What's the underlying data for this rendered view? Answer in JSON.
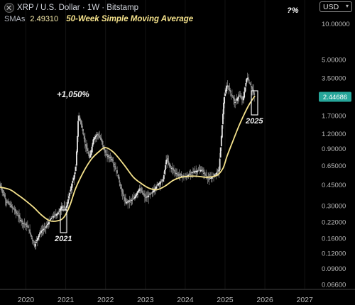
{
  "header": {
    "symbol": "XRP / U.S. Dollar · 1W · Bitstamp",
    "sma_label": "SMAs",
    "sma_value": "2.49310",
    "sma_name": "50-Week Simple Moving Average",
    "question": "?%",
    "currency": "USD"
  },
  "annotations": {
    "gain": "+1,050%",
    "box_2021": "2021",
    "box_2025": "2025"
  },
  "colors": {
    "background": "#000000",
    "sma": "#f5e28c",
    "candle": "#c8c8c8",
    "price_badge": "#26a69a"
  },
  "chart_data": {
    "type": "line",
    "scale": "log",
    "ylim": [
      0.06,
      12
    ],
    "xlim": [
      2019.35,
      2027.3
    ],
    "y_ticks": [
      "10.00000",
      "5.00000",
      "3.50000",
      "2.44686",
      "1.70000",
      "1.20000",
      "0.90000",
      "0.65000",
      "0.45000",
      "0.30000",
      "0.22000",
      "0.16000",
      "0.12000",
      "0.09000",
      "0.06600"
    ],
    "y_tick_values": [
      10.0,
      5.0,
      3.5,
      2.44686,
      1.7,
      1.2,
      0.9,
      0.65,
      0.45,
      0.3,
      0.22,
      0.16,
      0.12,
      0.09,
      0.066
    ],
    "x_ticks": [
      "2020",
      "2021",
      "2022",
      "2023",
      "2024",
      "2025",
      "2026",
      "2027"
    ],
    "x_tick_values": [
      2020,
      2021,
      2022,
      2023,
      2024,
      2025,
      2026,
      2027
    ],
    "current_price": "2.44686",
    "series": [
      {
        "name": "50-Week Simple Moving Average",
        "x": [
          2019.35,
          2019.6,
          2019.8,
          2020.0,
          2020.2,
          2020.4,
          2020.6,
          2020.8,
          2020.95,
          2021.1,
          2021.25,
          2021.45,
          2021.65,
          2021.85,
          2022.0,
          2022.2,
          2022.45,
          2022.7,
          2022.9,
          2023.1,
          2023.3,
          2023.5,
          2023.7,
          2023.9,
          2024.1,
          2024.3,
          2024.55,
          2024.8,
          2024.95,
          2025.05,
          2025.2,
          2025.35,
          2025.5,
          2025.62,
          2025.75
        ],
        "values": [
          0.43,
          0.41,
          0.37,
          0.33,
          0.29,
          0.25,
          0.225,
          0.225,
          0.24,
          0.3,
          0.42,
          0.58,
          0.74,
          0.86,
          0.92,
          0.84,
          0.67,
          0.52,
          0.46,
          0.42,
          0.41,
          0.44,
          0.49,
          0.52,
          0.53,
          0.53,
          0.52,
          0.54,
          0.62,
          0.78,
          1.05,
          1.4,
          1.8,
          2.15,
          2.49
        ]
      },
      {
        "name": "XRP / U.S. Dollar",
        "x": [
          2019.35,
          2019.5,
          2019.7,
          2019.9,
          2020.05,
          2020.15,
          2020.22,
          2020.35,
          2020.5,
          2020.65,
          2020.8,
          2020.9,
          2021.0,
          2021.15,
          2021.25,
          2021.32,
          2021.4,
          2021.5,
          2021.6,
          2021.7,
          2021.8,
          2021.9,
          2022.0,
          2022.15,
          2022.3,
          2022.4,
          2022.5,
          2022.7,
          2022.85,
          2023.0,
          2023.15,
          2023.3,
          2023.45,
          2023.53,
          2023.6,
          2023.8,
          2024.0,
          2024.2,
          2024.4,
          2024.6,
          2024.75,
          2024.85,
          2024.9,
          2024.97,
          2025.05,
          2025.15,
          2025.25,
          2025.35,
          2025.45,
          2025.55,
          2025.65,
          2025.75
        ],
        "values": [
          0.45,
          0.33,
          0.28,
          0.22,
          0.2,
          0.16,
          0.14,
          0.18,
          0.2,
          0.24,
          0.26,
          0.3,
          0.28,
          0.45,
          0.6,
          1.75,
          1.4,
          0.95,
          0.75,
          1.1,
          1.2,
          1.05,
          0.8,
          0.75,
          0.55,
          0.4,
          0.32,
          0.34,
          0.42,
          0.35,
          0.38,
          0.45,
          0.5,
          0.75,
          0.65,
          0.55,
          0.52,
          0.58,
          0.6,
          0.5,
          0.55,
          0.6,
          1.05,
          2.3,
          3.1,
          2.6,
          2.2,
          2.5,
          2.3,
          3.6,
          3.0,
          2.45
        ]
      }
    ]
  }
}
